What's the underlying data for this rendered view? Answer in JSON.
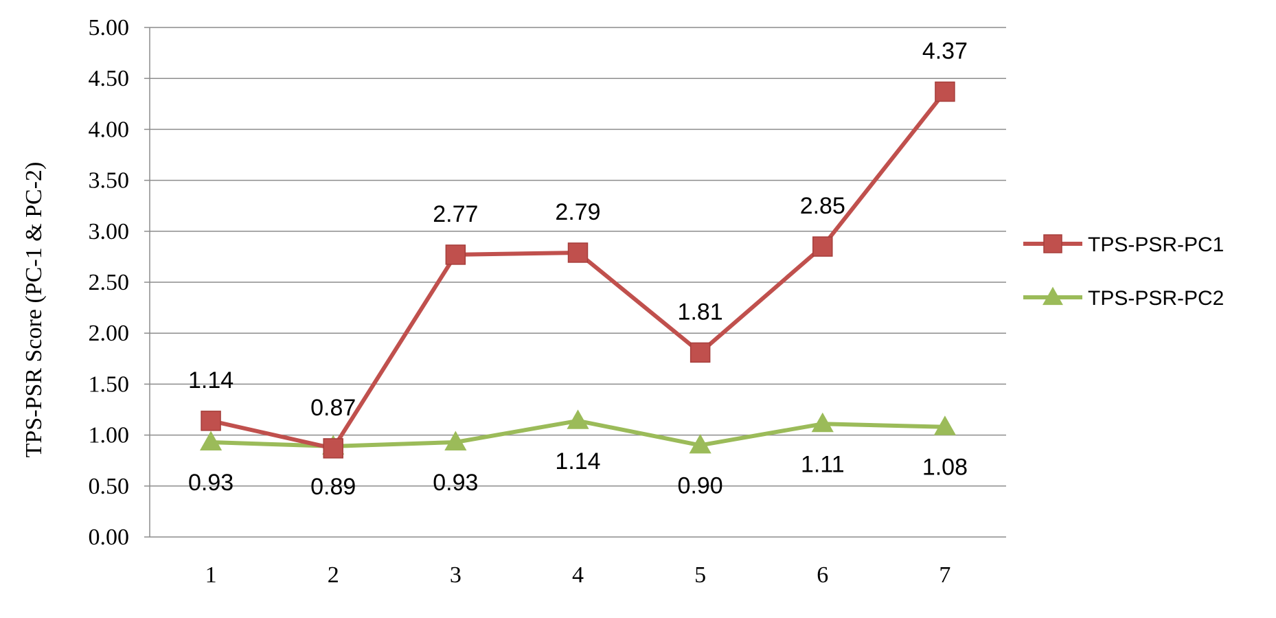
{
  "chart_data": {
    "type": "line",
    "title": "",
    "xlabel": "",
    "ylabel": "TPS-PSR Score (PC-1 & PC-2)",
    "categories": [
      "1",
      "2",
      "3",
      "4",
      "5",
      "6",
      "7"
    ],
    "ylim": [
      0,
      5
    ],
    "y_ticks": [
      "0.00",
      "0.50",
      "1.00",
      "1.50",
      "2.00",
      "2.50",
      "3.00",
      "3.50",
      "4.00",
      "4.50",
      "5.00"
    ],
    "grid": true,
    "legend_position": "right",
    "series": [
      {
        "name": "TPS-PSR-PC1",
        "values": [
          1.14,
          0.87,
          2.77,
          2.79,
          1.81,
          2.85,
          4.37
        ],
        "labels": [
          "1.14",
          "0.87",
          "2.77",
          "2.79",
          "1.81",
          "2.85",
          "4.37"
        ],
        "label_position": "above",
        "color": "#c0504d",
        "marker": "square"
      },
      {
        "name": "TPS-PSR-PC2",
        "values": [
          0.93,
          0.89,
          0.93,
          1.14,
          0.9,
          1.11,
          1.08
        ],
        "labels": [
          "0.93",
          "0.89",
          "0.93",
          "1.14",
          "0.90",
          "1.11",
          "1.08"
        ],
        "label_position": "below",
        "color": "#9bbb59",
        "marker": "triangle"
      }
    ]
  }
}
